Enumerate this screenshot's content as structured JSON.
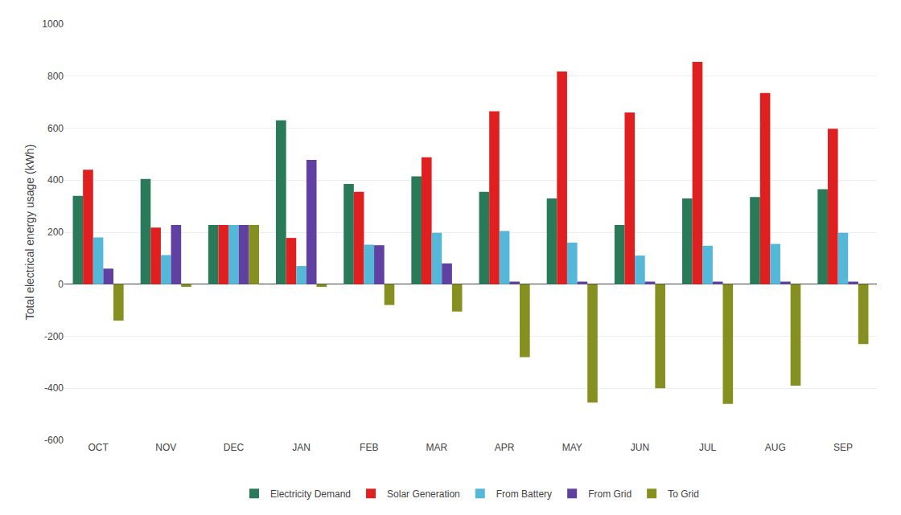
{
  "chart_data": {
    "type": "bar",
    "categories": [
      "OCT",
      "NOV",
      "DEC",
      "JAN",
      "FEB",
      "MAR",
      "APR",
      "MAY",
      "JUN",
      "JUL",
      "AUG",
      "SEP"
    ],
    "series": [
      {
        "name": "Electricity Demand",
        "color": "#2a7a5a",
        "values": [
          340,
          405,
          228,
          630,
          385,
          415,
          355,
          330,
          228,
          330,
          335,
          365
        ]
      },
      {
        "name": "Solar Generation",
        "color": "#e02020",
        "values": [
          440,
          218,
          228,
          178,
          355,
          488,
          665,
          818,
          660,
          855,
          735,
          598
        ]
      },
      {
        "name": "From Battery",
        "color": "#55b8d8",
        "values": [
          180,
          112,
          228,
          70,
          152,
          198,
          205,
          160,
          110,
          148,
          155,
          198
        ]
      },
      {
        "name": "From Grid",
        "color": "#6040a0",
        "values": [
          60,
          228,
          228,
          478,
          150,
          80,
          10,
          10,
          10,
          10,
          10,
          10
        ]
      },
      {
        "name": "To Grid",
        "color": "#859020",
        "values": [
          -140,
          -10,
          228,
          -10,
          -80,
          -105,
          -280,
          -455,
          -400,
          -460,
          -390,
          -230
        ]
      }
    ],
    "ylabel": "Total electrical energy usage (kWh)",
    "ylim": [
      -600,
      1000
    ],
    "yticks": [
      -600,
      -400,
      -200,
      0,
      200,
      400,
      600,
      800,
      1000
    ],
    "grid": true,
    "legend": "bottom"
  }
}
